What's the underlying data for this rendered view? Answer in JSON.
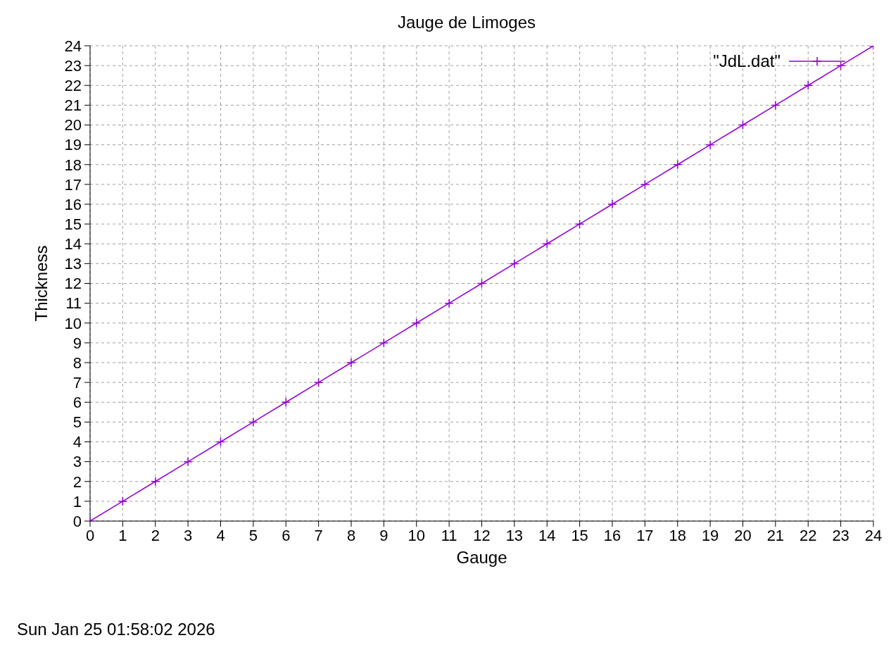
{
  "chart_data": {
    "type": "line",
    "title": "Jauge de Limoges",
    "xlabel": "Gauge",
    "ylabel": "Thickness",
    "annotations": [
      "Sun Jan 25 01:58:02 2026"
    ],
    "x": [
      0,
      1,
      2,
      3,
      4,
      5,
      6,
      7,
      8,
      9,
      10,
      11,
      12,
      13,
      14,
      15,
      16,
      17,
      18,
      19,
      20,
      21,
      22,
      23,
      24
    ],
    "series": [
      {
        "name": "\"JdL.dat\"",
        "color": "#9400d3",
        "values": [
          0,
          1,
          2,
          3,
          4,
          5,
          6,
          7,
          8,
          9,
          10,
          11,
          12,
          13,
          14,
          15,
          16,
          17,
          18,
          19,
          20,
          21,
          22,
          23,
          24
        ]
      }
    ],
    "xlim": [
      0,
      24
    ],
    "xticks": [
      0,
      1,
      2,
      3,
      4,
      5,
      6,
      7,
      8,
      9,
      10,
      11,
      12,
      13,
      14,
      15,
      16,
      17,
      18,
      19,
      20,
      21,
      22,
      23,
      24
    ],
    "ylim": [
      0,
      24
    ],
    "yticks": [
      0,
      1,
      2,
      3,
      4,
      5,
      6,
      7,
      8,
      9,
      10,
      11,
      12,
      13,
      14,
      15,
      16,
      17,
      18,
      19,
      20,
      21,
      22,
      23,
      24
    ],
    "grid": true,
    "legend": "top right",
    "marker": "cross",
    "line_style": "solid"
  }
}
